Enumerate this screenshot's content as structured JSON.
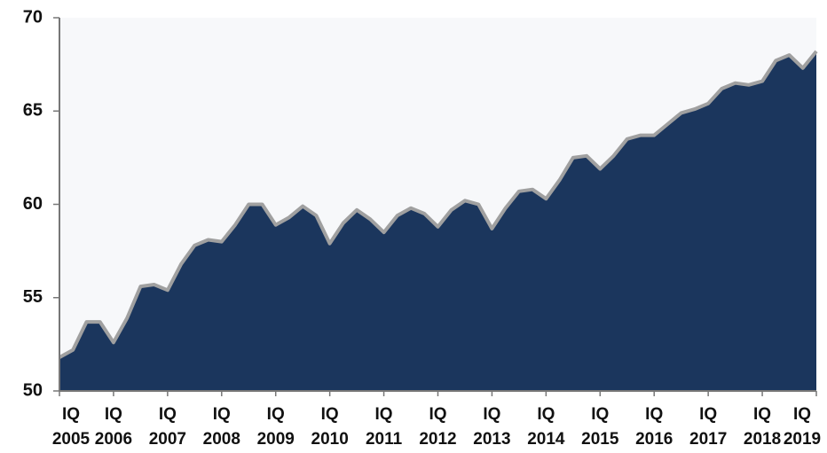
{
  "chart_data": {
    "type": "area",
    "categories": [
      "IQ 2005",
      null,
      null,
      null,
      "IQ 2006",
      null,
      null,
      null,
      "IQ 2007",
      null,
      null,
      null,
      "IQ 2008",
      null,
      null,
      null,
      "IQ 2009",
      null,
      null,
      null,
      "IQ 2010",
      null,
      null,
      null,
      "IQ 2011",
      null,
      null,
      null,
      "IQ 2012",
      null,
      null,
      null,
      "IQ 2013",
      null,
      null,
      null,
      "IQ 2014",
      null,
      null,
      null,
      "IQ 2015",
      null,
      null,
      null,
      "IQ 2016",
      null,
      null,
      null,
      "IQ 2017",
      null,
      null,
      null,
      "IQ 2018",
      null,
      null,
      null,
      "IQ 2019"
    ],
    "values": [
      51.8,
      52.2,
      53.7,
      53.7,
      52.6,
      53.9,
      55.6,
      55.7,
      55.4,
      56.8,
      57.8,
      58.1,
      58.0,
      58.9,
      60.0,
      60.0,
      58.9,
      59.3,
      59.9,
      59.4,
      57.9,
      59.0,
      59.7,
      59.2,
      58.5,
      59.4,
      59.8,
      59.5,
      58.8,
      59.7,
      60.2,
      60.0,
      58.7,
      59.8,
      60.7,
      60.8,
      60.3,
      61.3,
      62.5,
      62.6,
      61.9,
      62.6,
      63.5,
      63.7,
      63.7,
      64.3,
      64.9,
      65.1,
      65.4,
      66.2,
      66.5,
      66.4,
      66.6,
      67.7,
      68.0,
      67.3,
      68.2
    ],
    "color": "#1b365d",
    "line_color": "#a0a0a0",
    "ylim": [
      50,
      70
    ],
    "yticks": [
      50,
      55,
      60,
      65,
      70
    ]
  }
}
